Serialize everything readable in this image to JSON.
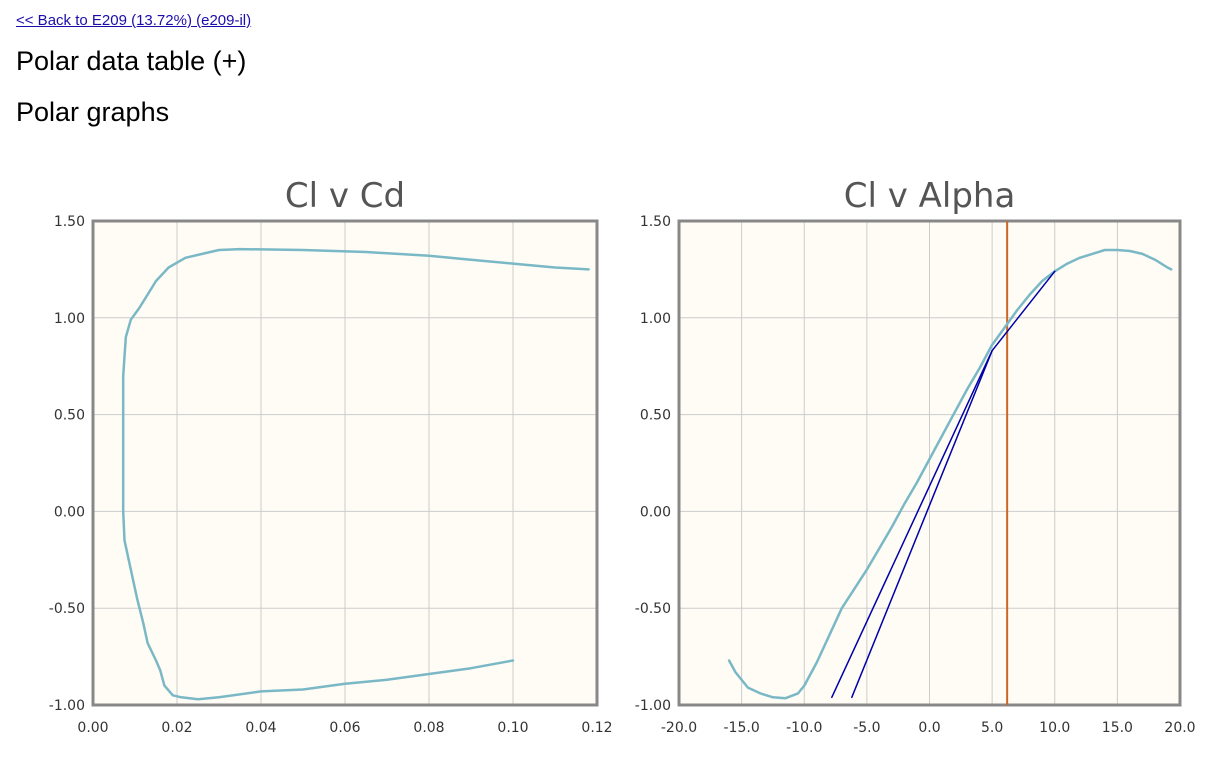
{
  "header": {
    "back_link": "<< Back to E209 (13.72%) (e209-il)",
    "polar_table_title": "Polar data table (+)",
    "polar_graphs_title": "Polar graphs"
  },
  "colors": {
    "plot_background": "#fefcf5",
    "grid": "#cccccc",
    "axis_frame": "#888888",
    "polar_curve": "#7ab8c6",
    "tangent_lines": "#0000aa",
    "marker_line": "#cc6622"
  },
  "chart_data": [
    {
      "type": "line",
      "title": "Cl v Cd",
      "xlabel": "",
      "ylabel": "",
      "xlim": [
        0,
        0.12
      ],
      "ylim": [
        -1,
        1.5
      ],
      "grid": true,
      "x_ticks": [
        "0.00",
        "0.02",
        "0.04",
        "0.06",
        "0.08",
        "0.10",
        "0.12"
      ],
      "y_ticks": [
        "1.50",
        "1.00",
        "0.50",
        "0.00",
        "-0.50",
        "-1.00"
      ],
      "series": [
        {
          "points": [
            [
              0.1,
              -0.77
            ],
            [
              0.09,
              -0.81
            ],
            [
              0.08,
              -0.84
            ],
            [
              0.07,
              -0.87
            ],
            [
              0.06,
              -0.89
            ],
            [
              0.05,
              -0.92
            ],
            [
              0.04,
              -0.93
            ],
            [
              0.03,
              -0.96
            ],
            [
              0.025,
              -0.97
            ],
            [
              0.021,
              -0.96
            ],
            [
              0.019,
              -0.95
            ],
            [
              0.017,
              -0.9
            ],
            [
              0.016,
              -0.82
            ],
            [
              0.015,
              -0.77
            ],
            [
              0.013,
              -0.68
            ],
            [
              0.012,
              -0.58
            ],
            [
              0.0105,
              -0.45
            ],
            [
              0.009,
              -0.3
            ],
            [
              0.0075,
              -0.15
            ],
            [
              0.0072,
              0.0
            ],
            [
              0.0072,
              0.3
            ],
            [
              0.0072,
              0.7
            ],
            [
              0.0078,
              0.9
            ],
            [
              0.009,
              0.99
            ],
            [
              0.011,
              1.05
            ],
            [
              0.013,
              1.12
            ],
            [
              0.015,
              1.19
            ],
            [
              0.018,
              1.26
            ],
            [
              0.022,
              1.31
            ],
            [
              0.026,
              1.33
            ],
            [
              0.03,
              1.35
            ],
            [
              0.035,
              1.355
            ],
            [
              0.05,
              1.35
            ],
            [
              0.065,
              1.34
            ],
            [
              0.08,
              1.32
            ],
            [
              0.09,
              1.3
            ],
            [
              0.1,
              1.28
            ],
            [
              0.11,
              1.26
            ],
            [
              0.118,
              1.25
            ]
          ]
        }
      ]
    },
    {
      "type": "line",
      "title": "Cl v Alpha",
      "xlabel": "",
      "ylabel": "",
      "xlim": [
        -20,
        20
      ],
      "ylim": [
        -1,
        1.5
      ],
      "grid": true,
      "x_ticks": [
        "-20.0",
        "-15.0",
        "-10.0",
        "-5.0",
        "0.0",
        "5.0",
        "10.0",
        "15.0",
        "20.0"
      ],
      "y_ticks": [
        "1.50",
        "1.00",
        "0.50",
        "0.00",
        "-0.50",
        "-1.00"
      ],
      "series": [
        {
          "points": [
            [
              -16.0,
              -0.77
            ],
            [
              -15.5,
              -0.83
            ],
            [
              -14.5,
              -0.91
            ],
            [
              -13.5,
              -0.94
            ],
            [
              -12.5,
              -0.96
            ],
            [
              -11.5,
              -0.965
            ],
            [
              -10.5,
              -0.94
            ],
            [
              -10.0,
              -0.9
            ],
            [
              -9.0,
              -0.78
            ],
            [
              -8.0,
              -0.64
            ],
            [
              -7.0,
              -0.5
            ],
            [
              -6.0,
              -0.4
            ],
            [
              -5.0,
              -0.3
            ],
            [
              -4.0,
              -0.19
            ],
            [
              -3.0,
              -0.08
            ],
            [
              -2.0,
              0.04
            ],
            [
              -1.0,
              0.15
            ],
            [
              0.0,
              0.27
            ],
            [
              1.0,
              0.39
            ],
            [
              2.0,
              0.51
            ],
            [
              3.0,
              0.63
            ],
            [
              4.0,
              0.74
            ],
            [
              5.0,
              0.86
            ],
            [
              6.0,
              0.95
            ],
            [
              7.0,
              1.04
            ],
            [
              8.0,
              1.12
            ],
            [
              9.0,
              1.19
            ],
            [
              10.0,
              1.24
            ],
            [
              11.0,
              1.28
            ],
            [
              12.0,
              1.31
            ],
            [
              13.0,
              1.33
            ],
            [
              14.0,
              1.35
            ],
            [
              15.0,
              1.35
            ],
            [
              16.0,
              1.345
            ],
            [
              17.0,
              1.33
            ],
            [
              18.0,
              1.3
            ],
            [
              19.0,
              1.26
            ],
            [
              19.3,
              1.25
            ]
          ]
        },
        {
          "points": [
            [
              -7.8,
              -0.96
            ],
            [
              5.0,
              0.83
            ]
          ]
        },
        {
          "points": [
            [
              -6.2,
              -0.96
            ],
            [
              5.0,
              0.83
            ]
          ]
        },
        {
          "points": [
            [
              5.0,
              0.83
            ],
            [
              10.0,
              1.24
            ]
          ]
        }
      ],
      "vertical_marker_x": 6.2
    }
  ]
}
